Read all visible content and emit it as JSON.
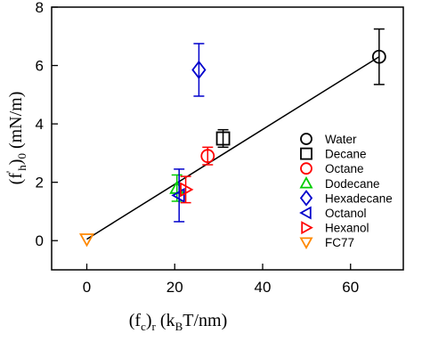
{
  "chart_data": {
    "type": "scatter",
    "xlabel": {
      "prefix": "(f",
      "sub1": "c",
      "close": ")",
      "sub2": "r",
      "unit_open": "  (k",
      "unit_sub": "B",
      "unit_rest": "T/nm)"
    },
    "ylabel": {
      "prefix": "(f",
      "sup": "'",
      "sub1": "h",
      "close": ")",
      "sub2": "0",
      "unit": "  (mN/m)"
    },
    "xlim": [
      -8,
      72
    ],
    "ylim": [
      -1,
      8
    ],
    "x_ticks": [
      0,
      20,
      40,
      60
    ],
    "y_ticks": [
      0,
      2,
      4,
      6,
      8
    ],
    "legend_position": "right",
    "fit_line": {
      "x": [
        0,
        66.5
      ],
      "y": [
        0.05,
        6.3
      ],
      "color": "#000000"
    },
    "series": [
      {
        "name": "Water",
        "marker": "circle",
        "color": "#000000",
        "x": 66.5,
        "y": 6.3,
        "yerr": 0.95
      },
      {
        "name": "Decane",
        "marker": "square",
        "color": "#000000",
        "x": 31.0,
        "y": 3.5,
        "yerr": 0.3
      },
      {
        "name": "Octane",
        "marker": "circle",
        "color": "#ff0000",
        "x": 27.5,
        "y": 2.9,
        "yerr": 0.3
      },
      {
        "name": "Dodecane",
        "marker": "triangle-up",
        "color": "#00cc00",
        "x": 20.5,
        "y": 1.8,
        "yerr": 0.45
      },
      {
        "name": "Hexadecane",
        "marker": "diamond",
        "color": "#0000cc",
        "x": 25.5,
        "y": 5.85,
        "yerr": 0.9
      },
      {
        "name": "Octanol",
        "marker": "triangle-left",
        "color": "#0000cc",
        "x": 21.0,
        "y": 1.55,
        "yerr": 0.9
      },
      {
        "name": "Hexanol",
        "marker": "triangle-right",
        "color": "#ff0000",
        "x": 22.5,
        "y": 1.75,
        "yerr": 0.45
      },
      {
        "name": "FC77",
        "marker": "triangle-down",
        "color": "#ff8800",
        "x": 0.0,
        "y": 0.05,
        "yerr": 0
      }
    ]
  }
}
